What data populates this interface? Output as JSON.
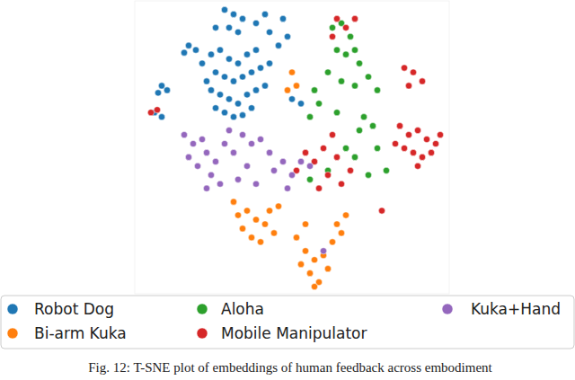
{
  "chart_data": {
    "type": "scatter",
    "title": "Fig. 12: T-SNE plot of embeddings of human feedback across embodiment",
    "xlim": [
      0,
      350
    ],
    "ylim": [
      0,
      328
    ],
    "tick_labels": false,
    "grid": false,
    "legend": "bottom",
    "marker": "circle",
    "series": [
      {
        "name": "Robot Dog",
        "color": "#1f77b4",
        "x": [
          85,
          95,
          105,
          115,
          125,
          135,
          90,
          100,
          110,
          120,
          130,
          140,
          150,
          85,
          95,
          105,
          115,
          125,
          135,
          145,
          100,
          110,
          120,
          130,
          90,
          80,
          75,
          100,
          110,
          120,
          105,
          115,
          135,
          145,
          150,
          165,
          170,
          160,
          90,
          60,
          68,
          55,
          30,
          36,
          26,
          22,
          30,
          175,
          185
        ],
        "values": [
          268,
          273,
          263,
          258,
          268,
          273,
          248,
          243,
          238,
          243,
          248,
          253,
          258,
          228,
          223,
          218,
          213,
          223,
          228,
          233,
          203,
          198,
          200,
          208,
          208,
          238,
          258,
          318,
          313,
          308,
          298,
          293,
          303,
          313,
          293,
          308,
          288,
          278,
          298,
          278,
          273,
          270,
          233,
          228,
          225,
          203,
          198,
          218,
          213
        ]
      },
      {
        "name": "Bi-arm Kuka",
        "color": "#ff7f0e",
        "x": [
          115,
          125,
          135,
          120,
          130,
          145,
          150,
          140,
          155,
          180,
          190,
          200,
          185,
          195,
          205,
          215,
          210,
          220,
          230,
          235,
          225,
          200,
          175,
          180,
          170,
          160,
          190,
          110
        ],
        "values": [
          88,
          93,
          83,
          73,
          63,
          78,
          93,
          58,
          68,
          63,
          48,
          38,
          33,
          23,
          13,
          28,
          43,
          58,
          68,
          88,
          78,
          8,
          248,
          233,
          228,
          98,
          78,
          103
        ]
      },
      {
        "name": "Aloha",
        "color": "#2ca02c",
        "x": [
          220,
          230,
          240,
          225,
          235,
          245,
          250,
          215,
          230,
          245,
          260,
          270,
          255,
          265,
          250,
          225,
          235,
          245,
          270,
          205,
          195,
          215,
          280,
          200,
          260,
          195
        ],
        "values": [
          298,
          303,
          288,
          273,
          268,
          273,
          258,
          248,
          238,
          233,
          243,
          228,
          198,
          188,
          183,
          203,
          163,
          153,
          163,
          213,
          198,
          138,
          138,
          228,
          133,
          128
        ]
      },
      {
        "name": "Mobile Manipulator",
        "color": "#d62728",
        "x": [
          225,
          235,
          245,
          220,
          300,
          310,
          320,
          305,
          295,
          305,
          315,
          325,
          335,
          300,
          310,
          320,
          330,
          340,
          290,
          315,
          220,
          210,
          225,
          200,
          190,
          215,
          230,
          205,
          240,
          18,
          25,
          275,
          180
        ],
        "values": [
          308,
          298,
          308,
          288,
          253,
          248,
          238,
          233,
          188,
          178,
          183,
          173,
          168,
          163,
          158,
          153,
          158,
          178,
          168,
          143,
          178,
          163,
          153,
          148,
          158,
          133,
          123,
          118,
          138,
          203,
          206,
          93,
          138
        ]
      },
      {
        "name": "Kuka+Hand",
        "color": "#9467bd",
        "x": [
          55,
          65,
          75,
          60,
          70,
          80,
          90,
          85,
          100,
          110,
          120,
          130,
          140,
          150,
          125,
          115,
          135,
          155,
          165,
          175,
          185,
          195,
          170,
          95,
          80,
          210,
          105
        ],
        "values": [
          178,
          168,
          173,
          153,
          143,
          158,
          148,
          133,
          168,
          158,
          178,
          168,
          173,
          158,
          143,
          128,
          123,
          138,
          148,
          133,
          148,
          143,
          118,
          123,
          118,
          48,
          183
        ]
      }
    ]
  }
}
